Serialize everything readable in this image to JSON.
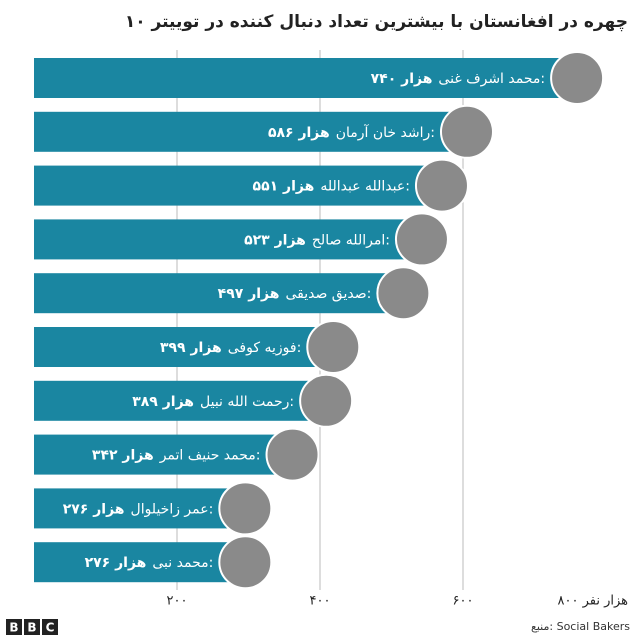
{
  "chart_data": {
    "type": "bar",
    "orientation": "horizontal",
    "title": "۱۰ چهره در افغانستان با بیشترین تعداد دنبال کننده در توییتر",
    "categories": [
      "محمد اشرف غنی:",
      "راشد خان آرمان:",
      "عبدالله عبدالله:",
      "امرالله صالح:",
      "صدیق صدیقی:",
      "فوزیه کوفی:",
      "رحمت الله نبیل:",
      "محمد حنیف اتمر:",
      "عمر زاخیلوال:",
      "محمد نبی:"
    ],
    "values": [
      740,
      586,
      551,
      523,
      497,
      399,
      389,
      342,
      276,
      276
    ],
    "value_labels": [
      "۷۴۰ هزار",
      "۵۸۶ هزار",
      "۵۵۱ هزار",
      "۵۲۳ هزار",
      "۴۹۷ هزار",
      "۳۹۹ هزار",
      "۳۸۹ هزار",
      "۳۴۲ هزار",
      "۲۷۶ هزار",
      "۲۷۶ هزار"
    ],
    "color": "#1a86a1",
    "xlim": [
      0,
      800
    ],
    "xticks": [
      {
        "value": 200,
        "label": "۲۰۰"
      },
      {
        "value": 400,
        "label": "۴۰۰"
      },
      {
        "value": 600,
        "label": "۶۰۰"
      },
      {
        "value": 800,
        "label": "۸۰۰ هزار نفر"
      }
    ],
    "grid": true,
    "source": "منبع: Social Bakers",
    "logo": [
      "B",
      "B",
      "C"
    ]
  }
}
